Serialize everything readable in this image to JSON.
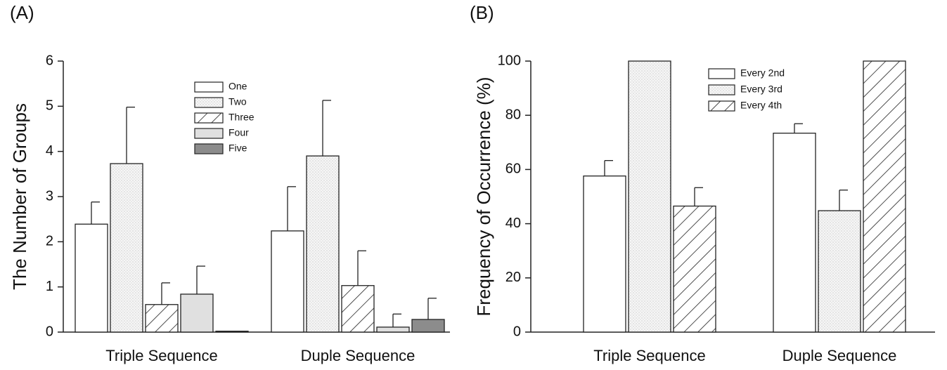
{
  "chart_data": [
    {
      "type": "bar",
      "panel_label": "(A)",
      "ylabel": "The Number of Groups",
      "categories": [
        "Triple Sequence",
        "Duple Sequence"
      ],
      "ylim": [
        0,
        6
      ],
      "yticks": [
        0,
        1,
        2,
        3,
        4,
        5,
        6
      ],
      "grid": false,
      "legend": "upper center",
      "series": [
        {
          "name": "One",
          "color": "#ffffff",
          "pattern": "none",
          "values": [
            2.39,
            2.24
          ],
          "errors": [
            0.49,
            0.98
          ]
        },
        {
          "name": "Two",
          "color": "#f4f4f4",
          "pattern": "dots",
          "values": [
            3.73,
            3.9
          ],
          "errors": [
            1.25,
            1.23
          ]
        },
        {
          "name": "Three",
          "color": "#ffffff",
          "pattern": "hatch",
          "values": [
            0.61,
            1.03
          ],
          "errors": [
            0.48,
            0.77
          ]
        },
        {
          "name": "Four",
          "color": "#e0e0e0",
          "pattern": "none",
          "values": [
            0.84,
            0.11
          ],
          "errors": [
            0.62,
            0.29
          ]
        },
        {
          "name": "Five",
          "color": "#8c8c8c",
          "pattern": "none",
          "values": [
            0.02,
            0.28
          ],
          "errors": [
            null,
            0.47
          ]
        }
      ]
    },
    {
      "type": "bar",
      "panel_label": "(B)",
      "ylabel": "Frequency of Occurrence (%)",
      "categories": [
        "Triple Sequence",
        "Duple Sequence"
      ],
      "ylim": [
        0,
        100
      ],
      "yticks": [
        0,
        20,
        40,
        60,
        80,
        100
      ],
      "grid": false,
      "legend": "upper center",
      "series": [
        {
          "name": "Every 2nd",
          "color": "#ffffff",
          "pattern": "none",
          "values": [
            57.6,
            73.4
          ],
          "errors": [
            5.7,
            3.5
          ]
        },
        {
          "name": "Every 3rd",
          "color": "#f4f4f4",
          "pattern": "dots",
          "values": [
            100,
            44.8
          ],
          "errors": [
            null,
            7.6
          ]
        },
        {
          "name": "Every 4th",
          "color": "#ffffff",
          "pattern": "hatch",
          "values": [
            46.5,
            100
          ],
          "errors": [
            6.8,
            null
          ]
        }
      ]
    }
  ]
}
